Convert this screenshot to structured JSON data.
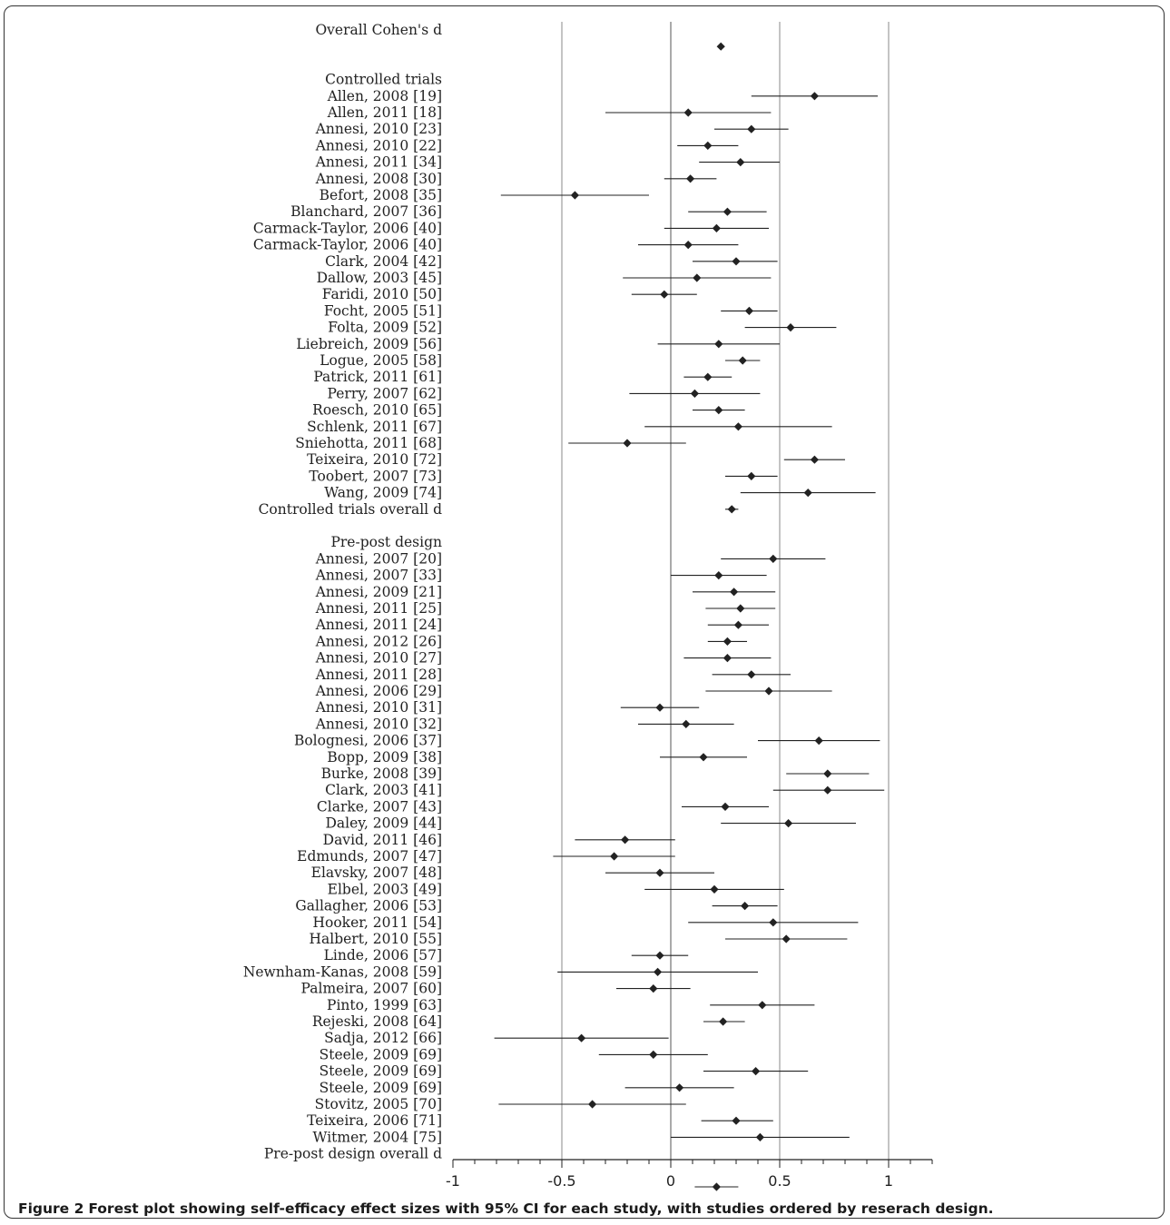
{
  "chart_data": {
    "type": "forest",
    "xlim": [
      -1,
      1.2
    ],
    "xticks": [
      "-1",
      "-0.5",
      "0",
      "0.5",
      "1"
    ],
    "xtick_values": [
      -1,
      -0.5,
      0,
      0.5,
      1
    ],
    "vertical_gridlines": [
      -0.5,
      0,
      0.5,
      1
    ],
    "marker": "diamond",
    "rows": [
      {
        "label": "Overall Cohen's d",
        "d": null,
        "lo": null,
        "hi": null
      },
      {
        "label": "",
        "d": 0.23,
        "lo": null,
        "hi": null
      },
      {
        "label": "",
        "d": null,
        "lo": null,
        "hi": null
      },
      {
        "label": "Controlled trials",
        "d": null,
        "lo": null,
        "hi": null
      },
      {
        "label": "Allen, 2008 [19]",
        "d": 0.66,
        "lo": 0.37,
        "hi": 0.95
      },
      {
        "label": "Allen, 2011 [18]",
        "d": 0.08,
        "lo": -0.3,
        "hi": 0.46
      },
      {
        "label": "Annesi, 2010 [23]",
        "d": 0.37,
        "lo": 0.2,
        "hi": 0.54
      },
      {
        "label": "Annesi, 2010 [22]",
        "d": 0.17,
        "lo": 0.03,
        "hi": 0.31
      },
      {
        "label": "Annesi, 2011 [34]",
        "d": 0.32,
        "lo": 0.13,
        "hi": 0.5
      },
      {
        "label": "Annesi, 2008 [30]",
        "d": 0.09,
        "lo": -0.03,
        "hi": 0.21
      },
      {
        "label": "Befort, 2008 [35]",
        "d": -0.44,
        "lo": -0.78,
        "hi": -0.1
      },
      {
        "label": "Blanchard, 2007 [36]",
        "d": 0.26,
        "lo": 0.08,
        "hi": 0.44
      },
      {
        "label": "Carmack-Taylor, 2006 [40]",
        "d": 0.21,
        "lo": -0.03,
        "hi": 0.45
      },
      {
        "label": "Carmack-Taylor, 2006 [40]",
        "d": 0.08,
        "lo": -0.15,
        "hi": 0.31
      },
      {
        "label": "Clark, 2004 [42]",
        "d": 0.3,
        "lo": 0.1,
        "hi": 0.49
      },
      {
        "label": "Dallow, 2003 [45]",
        "d": 0.12,
        "lo": -0.22,
        "hi": 0.46
      },
      {
        "label": "Faridi, 2010 [50]",
        "d": -0.03,
        "lo": -0.18,
        "hi": 0.12
      },
      {
        "label": "Focht, 2005 [51]",
        "d": 0.36,
        "lo": 0.23,
        "hi": 0.49
      },
      {
        "label": "Folta, 2009 [52]",
        "d": 0.55,
        "lo": 0.34,
        "hi": 0.76
      },
      {
        "label": "Liebreich, 2009 [56]",
        "d": 0.22,
        "lo": -0.06,
        "hi": 0.5
      },
      {
        "label": "Logue, 2005 [58]",
        "d": 0.33,
        "lo": 0.25,
        "hi": 0.41
      },
      {
        "label": "Patrick, 2011 [61]",
        "d": 0.17,
        "lo": 0.06,
        "hi": 0.28
      },
      {
        "label": "Perry, 2007 [62]",
        "d": 0.11,
        "lo": -0.19,
        "hi": 0.41
      },
      {
        "label": "Roesch, 2010 [65]",
        "d": 0.22,
        "lo": 0.1,
        "hi": 0.34
      },
      {
        "label": "Schlenk, 2011 [67]",
        "d": 0.31,
        "lo": -0.12,
        "hi": 0.74
      },
      {
        "label": "Sniehotta, 2011 [68]",
        "d": -0.2,
        "lo": -0.47,
        "hi": 0.07
      },
      {
        "label": "Teixeira, 2010 [72]",
        "d": 0.66,
        "lo": 0.52,
        "hi": 0.8
      },
      {
        "label": "Toobert, 2007 [73]",
        "d": 0.37,
        "lo": 0.25,
        "hi": 0.49
      },
      {
        "label": "Wang, 2009 [74]",
        "d": 0.63,
        "lo": 0.32,
        "hi": 0.94
      },
      {
        "label": "Controlled trials overall d",
        "d": 0.28,
        "lo": 0.25,
        "hi": 0.31
      },
      {
        "label": "",
        "d": null,
        "lo": null,
        "hi": null
      },
      {
        "label": "Pre-post design",
        "d": null,
        "lo": null,
        "hi": null
      },
      {
        "label": "Annesi, 2007 [20]",
        "d": 0.47,
        "lo": 0.23,
        "hi": 0.71
      },
      {
        "label": "Annesi, 2007 [33]",
        "d": 0.22,
        "lo": 0.0,
        "hi": 0.44
      },
      {
        "label": "Annesi, 2009 [21]",
        "d": 0.29,
        "lo": 0.1,
        "hi": 0.48
      },
      {
        "label": "Annesi, 2011 [25]",
        "d": 0.32,
        "lo": 0.16,
        "hi": 0.48
      },
      {
        "label": "Annesi, 2011 [24]",
        "d": 0.31,
        "lo": 0.17,
        "hi": 0.45
      },
      {
        "label": "Annesi, 2012 [26]",
        "d": 0.26,
        "lo": 0.17,
        "hi": 0.35
      },
      {
        "label": "Annesi, 2010 [27]",
        "d": 0.26,
        "lo": 0.06,
        "hi": 0.46
      },
      {
        "label": "Annesi, 2011 [28]",
        "d": 0.37,
        "lo": 0.19,
        "hi": 0.55
      },
      {
        "label": "Annesi, 2006 [29]",
        "d": 0.45,
        "lo": 0.16,
        "hi": 0.74
      },
      {
        "label": "Annesi, 2010 [31]",
        "d": -0.05,
        "lo": -0.23,
        "hi": 0.13
      },
      {
        "label": "Annesi, 2010 [32]",
        "d": 0.07,
        "lo": -0.15,
        "hi": 0.29
      },
      {
        "label": "Bolognesi, 2006 [37]",
        "d": 0.68,
        "lo": 0.4,
        "hi": 0.96
      },
      {
        "label": "Bopp, 2009 [38]",
        "d": 0.15,
        "lo": -0.05,
        "hi": 0.35
      },
      {
        "label": "Burke, 2008 [39]",
        "d": 0.72,
        "lo": 0.53,
        "hi": 0.91
      },
      {
        "label": "Clark, 2003 [41]",
        "d": 0.72,
        "lo": 0.47,
        "hi": 0.98
      },
      {
        "label": "Clarke, 2007 [43]",
        "d": 0.25,
        "lo": 0.05,
        "hi": 0.45
      },
      {
        "label": "Daley, 2009 [44]",
        "d": 0.54,
        "lo": 0.23,
        "hi": 0.85
      },
      {
        "label": "David, 2011 [46]",
        "d": -0.21,
        "lo": -0.44,
        "hi": 0.02
      },
      {
        "label": "Edmunds, 2007 [47]",
        "d": -0.26,
        "lo": -0.54,
        "hi": 0.02
      },
      {
        "label": "Elavsky, 2007 [48]",
        "d": -0.05,
        "lo": -0.3,
        "hi": 0.2
      },
      {
        "label": "Elbel, 2003 [49]",
        "d": 0.2,
        "lo": -0.12,
        "hi": 0.52
      },
      {
        "label": "Gallagher, 2006 [53]",
        "d": 0.34,
        "lo": 0.19,
        "hi": 0.49
      },
      {
        "label": "Hooker, 2011 [54]",
        "d": 0.47,
        "lo": 0.08,
        "hi": 0.86
      },
      {
        "label": "Halbert, 2010 [55]",
        "d": 0.53,
        "lo": 0.25,
        "hi": 0.81
      },
      {
        "label": "Linde, 2006 [57]",
        "d": -0.05,
        "lo": -0.18,
        "hi": 0.08
      },
      {
        "label": "Newnham-Kanas, 2008 [59]",
        "d": -0.06,
        "lo": -0.52,
        "hi": 0.4
      },
      {
        "label": "Palmeira, 2007 [60]",
        "d": -0.08,
        "lo": -0.25,
        "hi": 0.09
      },
      {
        "label": "Pinto, 1999 [63]",
        "d": 0.42,
        "lo": 0.18,
        "hi": 0.66
      },
      {
        "label": "Rejeski, 2008 [64]",
        "d": 0.24,
        "lo": 0.15,
        "hi": 0.34
      },
      {
        "label": "Sadja, 2012 [66]",
        "d": -0.41,
        "lo": -0.81,
        "hi": -0.01
      },
      {
        "label": "Steele, 2009 [69]",
        "d": -0.08,
        "lo": -0.33,
        "hi": 0.17
      },
      {
        "label": "Steele, 2009 [69]",
        "d": 0.39,
        "lo": 0.15,
        "hi": 0.63
      },
      {
        "label": "Steele, 2009 [69]",
        "d": 0.04,
        "lo": -0.21,
        "hi": 0.29
      },
      {
        "label": "Stovitz, 2005 [70]",
        "d": -0.36,
        "lo": -0.79,
        "hi": 0.07
      },
      {
        "label": "Teixeira, 2006 [71]",
        "d": 0.3,
        "lo": 0.14,
        "hi": 0.47
      },
      {
        "label": "Witmer, 2004 [75]",
        "d": 0.41,
        "lo": 0.0,
        "hi": 0.82
      },
      {
        "label": "Pre-post design overall d",
        "d": null,
        "lo": null,
        "hi": null
      },
      {
        "label": "",
        "d": null,
        "lo": null,
        "hi": null
      },
      {
        "label": "",
        "d": 0.21,
        "lo": 0.11,
        "hi": 0.31
      }
    ]
  },
  "caption": {
    "lead": "Figure 2",
    "text": "Forest plot showing self-efficacy effect sizes with 95% CI for each study, with studies ordered by reserach design."
  },
  "colors": {
    "ink": "#222222",
    "gridline": "#8a8a8a",
    "frame": "#333333"
  }
}
